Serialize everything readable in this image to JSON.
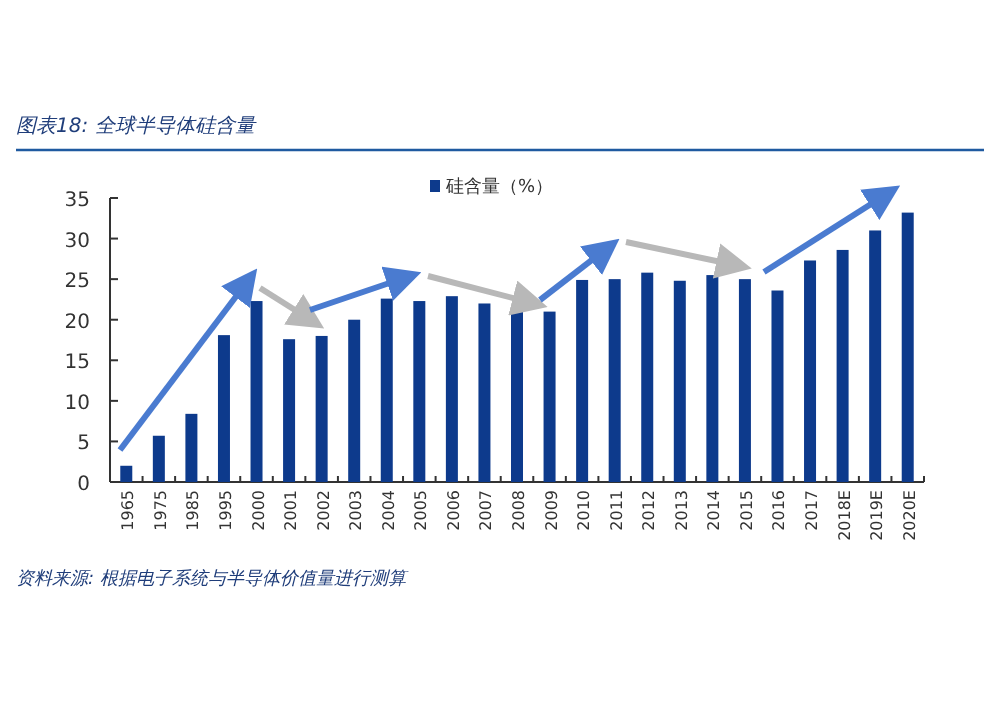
{
  "chart_data": {
    "type": "bar",
    "title": "图表18: 全球半导体硅含量",
    "categories": [
      "1965",
      "1975",
      "1985",
      "1995",
      "2000",
      "2001",
      "2002",
      "2003",
      "2004",
      "2005",
      "2006",
      "2007",
      "2008",
      "2009",
      "2010",
      "2011",
      "2012",
      "2013",
      "2014",
      "2015",
      "2016",
      "2017",
      "2018E",
      "2019E",
      "2020E"
    ],
    "series": [
      {
        "name": "硅含量（%）",
        "color": "#0d3a8c",
        "values": [
          2,
          5.7,
          8.4,
          18.1,
          22.3,
          17.6,
          18,
          20,
          22.6,
          22.3,
          22.9,
          22,
          21.6,
          21,
          24.9,
          25,
          25.8,
          24.8,
          25.5,
          25,
          23.6,
          27.3,
          28.6,
          31,
          33.2
        ]
      }
    ],
    "ylim": [
      0,
      35
    ],
    "yticks": [
      0,
      5,
      10,
      15,
      20,
      25,
      30,
      35
    ],
    "legend": "top",
    "grid": false,
    "annotations": [
      "资料来源: 根据电子系统与半导体价值量进行测算"
    ]
  }
}
